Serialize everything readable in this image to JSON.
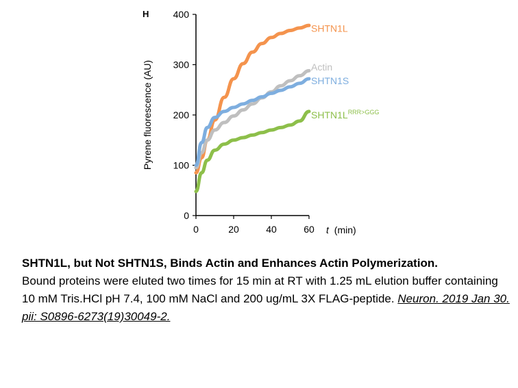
{
  "chart_data": {
    "type": "line",
    "panel_label": "H",
    "ylabel": "Pyrene fluorescence (AU)",
    "xlabel_italic": "t",
    "xlabel_unit": "(min)",
    "xlim": [
      0,
      60
    ],
    "ylim": [
      0,
      400
    ],
    "xticks": [
      "0",
      "20",
      "40",
      "60"
    ],
    "yticks": [
      "0",
      "100",
      "200",
      "300",
      "400"
    ],
    "xtick_values": [
      0,
      20,
      40,
      60
    ],
    "ytick_values": [
      0,
      100,
      200,
      300,
      400
    ],
    "grid": false,
    "legend": "inline-right",
    "series": [
      {
        "name": "SHTN1L",
        "name_sup": "",
        "color": "#f4934d",
        "x": [
          0,
          3,
          6,
          10,
          15,
          20,
          25,
          30,
          35,
          40,
          45,
          50,
          55,
          60
        ],
        "y": [
          85,
          115,
          150,
          190,
          235,
          272,
          302,
          325,
          342,
          354,
          362,
          368,
          373,
          378
        ]
      },
      {
        "name": "Actin",
        "name_sup": "",
        "color": "#bfbfbf",
        "x": [
          0,
          3,
          6,
          10,
          15,
          20,
          25,
          30,
          35,
          40,
          45,
          50,
          55,
          60
        ],
        "y": [
          95,
          125,
          150,
          170,
          185,
          198,
          210,
          222,
          234,
          246,
          258,
          268,
          278,
          288
        ]
      },
      {
        "name": "SHTN1S",
        "name_sup": "",
        "color": "#7eaedf",
        "x": [
          0,
          3,
          6,
          10,
          15,
          20,
          25,
          30,
          35,
          40,
          45,
          50,
          55,
          60
        ],
        "y": [
          100,
          145,
          175,
          195,
          207,
          215,
          222,
          229,
          236,
          243,
          249,
          256,
          263,
          272
        ]
      },
      {
        "name": "SHTN1L",
        "name_sup": "RRR>GGG",
        "color": "#8dbf4a",
        "x": [
          0,
          3,
          6,
          10,
          15,
          20,
          25,
          30,
          35,
          40,
          45,
          50,
          55,
          60
        ],
        "y": [
          48,
          85,
          110,
          130,
          142,
          150,
          155,
          160,
          165,
          170,
          175,
          180,
          188,
          207
        ]
      }
    ]
  },
  "caption": {
    "title": "SHTN1L, but Not SHTN1S, Binds Actin and Enhances Actin Polymerization.",
    "body": "Bound proteins were eluted two times for 15 min at RT with 1.25 mL elution buffer containing 10 mM Tris.HCl pH 7.4, 100 mM NaCl and 200 ug/mL 3X FLAG-peptide. ",
    "reference": "Neuron. 2019 Jan 30. pii: S0896-6273(19)30049-2."
  }
}
